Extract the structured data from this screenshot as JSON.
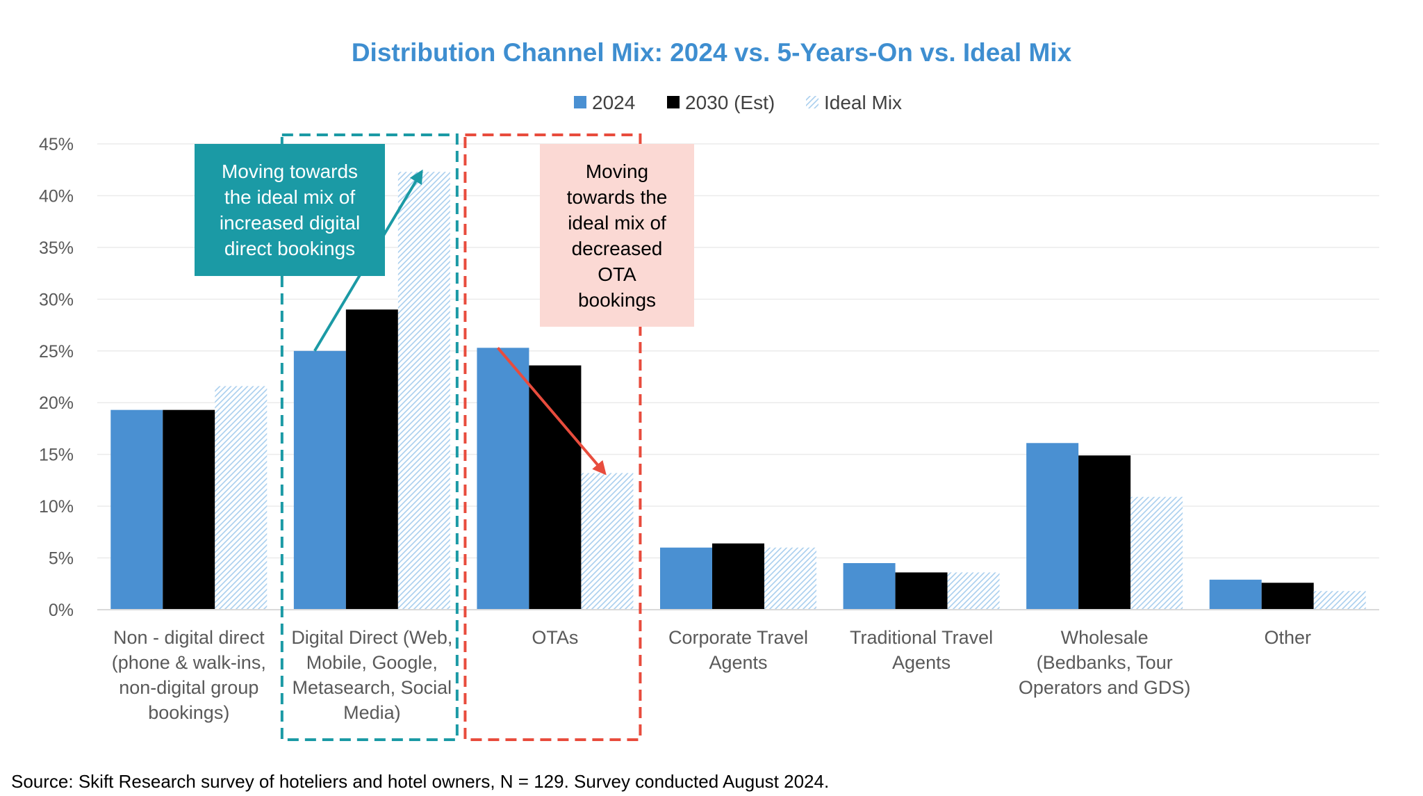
{
  "chart_data": {
    "type": "bar",
    "title": "Distribution Channel Mix: 2024 vs. 5-Years-On vs. Ideal Mix",
    "categories": [
      [
        "Non - digital direct",
        "(phone & walk-ins,",
        "non-digital group",
        "bookings)"
      ],
      [
        "Digital Direct (Web,",
        "Mobile, Google,",
        "Metasearch, Social",
        "Media)"
      ],
      [
        "OTAs"
      ],
      [
        "Corporate Travel",
        "Agents"
      ],
      [
        "Traditional Travel",
        "Agents"
      ],
      [
        "Wholesale",
        "(Bedbanks, Tour",
        "Operators and GDS)"
      ],
      [
        "Other"
      ]
    ],
    "series": [
      {
        "name": "2024",
        "values": [
          19.3,
          25.0,
          25.3,
          6.0,
          4.5,
          16.1,
          2.9
        ],
        "color": "#4a90d2",
        "pattern": "solid"
      },
      {
        "name": "2030 (Est)",
        "values": [
          19.3,
          29.0,
          23.6,
          6.4,
          3.6,
          14.9,
          2.6
        ],
        "color": "#000000",
        "pattern": "solid"
      },
      {
        "name": "Ideal Mix",
        "values": [
          21.6,
          42.3,
          13.2,
          6.0,
          3.6,
          10.9,
          1.8
        ],
        "color": "#a9cfee",
        "pattern": "hatched"
      }
    ],
    "yaxis": {
      "ylim": [
        0,
        45
      ],
      "ticks": [
        0,
        5,
        10,
        15,
        20,
        25,
        30,
        35,
        40,
        45
      ],
      "tick_labels": [
        "0%",
        "5%",
        "10%",
        "15%",
        "20%",
        "25%",
        "30%",
        "35%",
        "40%",
        "45%"
      ]
    },
    "grid": true,
    "legend_position": "top-center",
    "annotations": [
      {
        "text": [
          "Moving towards",
          "the ideal mix of",
          "increased digital",
          "direct bookings"
        ],
        "box_color": "#1b9aa5",
        "text_color": "#ffffff",
        "highlight_category": 1,
        "highlight_color": "#1b9aa5",
        "arrow_color": "#1b9aa5",
        "arrow_from": {
          "category": 1,
          "series": 0
        },
        "arrow_to": {
          "category": 1,
          "series": 2
        }
      },
      {
        "text": [
          "Moving",
          "towards the",
          "ideal mix of",
          "decreased",
          "OTA",
          "bookings"
        ],
        "box_color": "#fbd9d4",
        "text_color": "#000000",
        "highlight_category": 2,
        "highlight_color": "#e84c3d",
        "arrow_color": "#e84c3d",
        "arrow_from": {
          "category": 2,
          "series": 0
        },
        "arrow_to": {
          "category": 2,
          "series": 2
        }
      }
    ],
    "source": "Source: Skift Research survey of hoteliers and hotel owners, N = 129. Survey conducted August 2024.",
    "colors": {
      "title": "#3e8ed0",
      "grid": "#ebebeb",
      "axis": "#d9d9d9"
    }
  }
}
